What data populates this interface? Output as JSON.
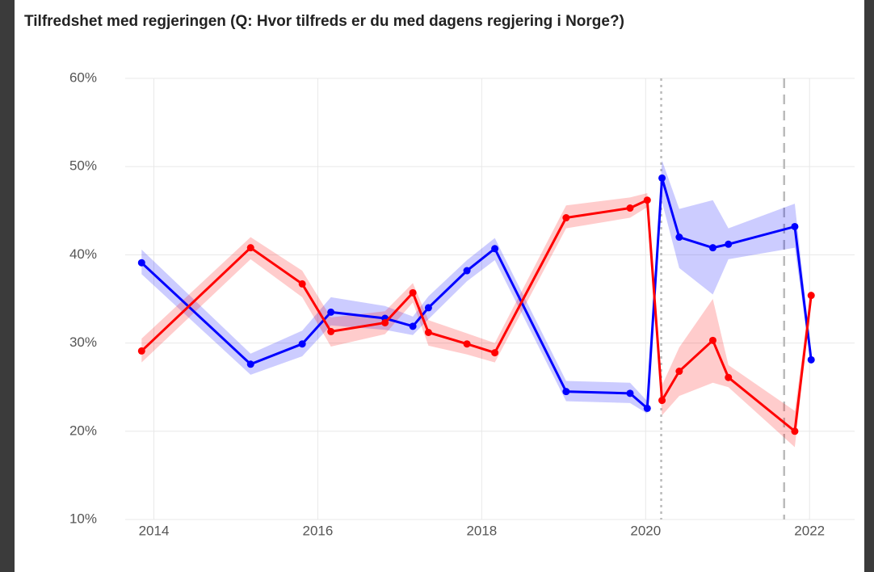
{
  "chart_data": {
    "type": "line",
    "title": "Tilfredshet med regjeringen (Q: Hvor tilfreds er du med dagens regjering i Norge?)",
    "x": [
      2013.85,
      2015.18,
      2015.81,
      2016.16,
      2016.82,
      2017.16,
      2017.35,
      2017.82,
      2018.16,
      2019.03,
      2019.81,
      2020.02,
      2020.2,
      2020.41,
      2020.82,
      2021.01,
      2021.82,
      2022.02
    ],
    "series": [
      {
        "color": "#0000ff",
        "band_color": "rgba(0,0,255,0.2)",
        "values": [
          39.1,
          27.6,
          29.9,
          33.5,
          32.8,
          31.9,
          34.0,
          38.2,
          40.7,
          24.5,
          24.3,
          22.6,
          48.7,
          42.0,
          40.8,
          41.2,
          43.2,
          28.1
        ],
        "lower": [
          37.8,
          26.4,
          28.5,
          32.0,
          31.5,
          30.9,
          32.7,
          37.0,
          39.4,
          23.4,
          23.2,
          22.0,
          46.0,
          38.5,
          35.5,
          39.5,
          40.8,
          27.5
        ],
        "upper": [
          40.6,
          28.8,
          31.4,
          35.2,
          34.2,
          33.0,
          35.3,
          39.4,
          41.9,
          25.7,
          25.5,
          23.4,
          50.7,
          45.2,
          46.2,
          43.0,
          45.8,
          28.8
        ]
      },
      {
        "color": "#ff0000",
        "band_color": "rgba(255,0,0,0.2)",
        "values": [
          29.1,
          40.8,
          36.7,
          31.3,
          32.3,
          35.7,
          31.2,
          29.9,
          28.9,
          44.2,
          45.3,
          46.2,
          23.5,
          26.8,
          30.3,
          26.1,
          20.0,
          35.4
        ],
        "lower": [
          27.8,
          39.5,
          35.2,
          29.6,
          31.0,
          34.6,
          29.7,
          28.7,
          27.8,
          43.0,
          44.2,
          45.4,
          21.8,
          24.0,
          25.5,
          25.0,
          18.2,
          34.7
        ],
        "upper": [
          30.5,
          42.0,
          38.2,
          32.9,
          33.6,
          36.8,
          32.6,
          31.1,
          30.0,
          45.6,
          46.5,
          47.0,
          25.2,
          29.5,
          35.0,
          27.5,
          22.3,
          36.1
        ]
      }
    ],
    "xlim": [
      2013.65,
      2022.55
    ],
    "xticks": [
      2014,
      2016,
      2018,
      2020,
      2022
    ],
    "ylim": [
      10,
      60
    ],
    "yticks": [
      {
        "value": 10,
        "label": "10%"
      },
      {
        "value": 20,
        "label": "20%"
      },
      {
        "value": 30,
        "label": "30%"
      },
      {
        "value": 40,
        "label": "40%"
      },
      {
        "value": 50,
        "label": "50%"
      },
      {
        "value": 60,
        "label": "60%"
      }
    ],
    "grid": true,
    "vlines": [
      {
        "x": 2020.19,
        "style": "dotted"
      },
      {
        "x": 2021.69,
        "style": "dashed"
      }
    ]
  }
}
